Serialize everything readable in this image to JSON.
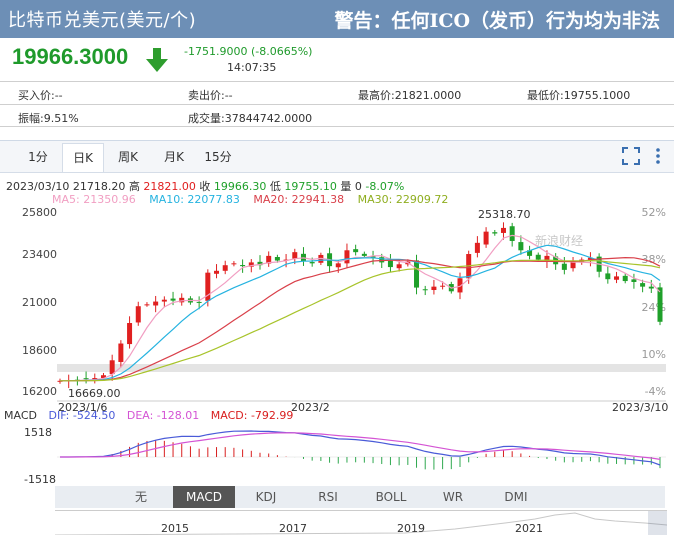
{
  "header": {
    "title": "比特币兑美元(美元/个)",
    "warning": "警告：任何ICO（发币）行为均为非法"
  },
  "quote": {
    "price": "19966.3000",
    "change": "-1751.9000 (-8.0665%)",
    "time": "14:07:35",
    "down_color": "#1f9a2b"
  },
  "info": {
    "bid": "买入价:--",
    "ask": "卖出价:--",
    "high": "最高价:21821.0000",
    "low": "最低价:19755.1000",
    "amplitude": "振幅:9.51%",
    "volume": "成交量:37844742.0000"
  },
  "tabs": [
    "1分",
    "日K",
    "周K",
    "月K",
    "15分"
  ],
  "active_tab": "日K",
  "ohlc": {
    "date": "2023/03/10",
    "open": "21718.20",
    "high_label": "高",
    "high": "21821.00",
    "close_label": "收",
    "close": "19966.30",
    "low_label": "低",
    "low": "19755.10",
    "vol_label": "量",
    "vol": "0",
    "pct": "-8.07%"
  },
  "ma": {
    "ma5": "MA5: 21350.96",
    "ma10": "MA10: 22077.83",
    "ma20": "MA20: 22941.38",
    "ma30": "MA30: 22909.72"
  },
  "colors": {
    "up": "#e02020",
    "down": "#1fa02a",
    "ma5": "#f19ec2",
    "ma10": "#26b3e0",
    "ma20": "#d9404a",
    "ma30": "#a8c42b",
    "dif": "#4a5bd8",
    "dea": "#d454d4",
    "macd": "#d81e1e"
  },
  "axis": {
    "y_ticks": [
      "25800",
      "23400",
      "21000",
      "18600",
      "16200"
    ],
    "pct_ticks": [
      "52%",
      "38%",
      "24%",
      "10%",
      "-4%"
    ],
    "x_ticks": [
      "2023/1/6",
      "2023/2",
      "2023/3/10"
    ],
    "high_mark": "25318.70",
    "low_mark": "16669.00",
    "watermark": "新浪财经"
  },
  "chart_data": {
    "type": "candlestick",
    "dates": [
      "2023/1/6",
      "2023/3/10"
    ],
    "ylim": [
      16200,
      25800
    ],
    "closes": [
      16800,
      16830,
      16850,
      16900,
      16950,
      17100,
      17900,
      18800,
      19900,
      20800,
      20900,
      21050,
      21150,
      21100,
      21250,
      21000,
      21000,
      22600,
      22700,
      23000,
      23100,
      22950,
      23150,
      23000,
      23500,
      23250,
      23300,
      23700,
      23200,
      23100,
      23550,
      22950,
      23100,
      23800,
      23700,
      23500,
      23400,
      23150,
      22900,
      23050,
      23200,
      21800,
      21700,
      21850,
      21900,
      21600,
      22300,
      23600,
      24200,
      24800,
      24700,
      25000,
      24300,
      23800,
      23500,
      23300,
      23500,
      23050,
      22750,
      23200,
      23300,
      23400,
      22650,
      22250,
      22400,
      22150,
      22100,
      21850,
      21750,
      19966
    ],
    "extremes": {
      "high": 25318.7,
      "low": 16669.0
    },
    "ma": {
      "MA5": 21350.96,
      "MA10": 22077.83,
      "MA20": 22941.38,
      "MA30": 22909.72
    }
  },
  "macd": {
    "dif": "DIF: -524.50",
    "dea": "DEA: -128.01",
    "macd": "MACD: -792.99",
    "top": "1518",
    "bottom": "-1518"
  },
  "indicators": [
    "无",
    "MACD",
    "KDJ",
    "RSI",
    "BOLL",
    "WR",
    "DMI"
  ],
  "active_indicator": "MACD",
  "overview_years": [
    "2015",
    "2017",
    "2019",
    "2021"
  ]
}
